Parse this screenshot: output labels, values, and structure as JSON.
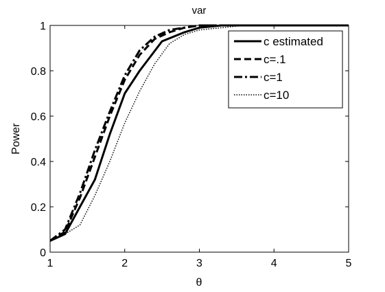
{
  "chart_data": {
    "type": "line",
    "title": "var",
    "xlabel": "θ",
    "ylabel": "Power",
    "xlim": [
      1,
      5
    ],
    "ylim": [
      0,
      1
    ],
    "xticks": [
      1,
      2,
      3,
      4,
      5
    ],
    "yticks": [
      0,
      0.2,
      0.4,
      0.6,
      0.8,
      1
    ],
    "xtick_labels": [
      "1",
      "2",
      "3",
      "4",
      "5"
    ],
    "ytick_labels": [
      "0",
      "0.2",
      "0.4",
      "0.6",
      "0.8",
      "1"
    ],
    "grid": false,
    "legend_position": "top-right",
    "series": [
      {
        "name": "c estimated",
        "style": "solid-thick",
        "color": "#000000",
        "x": [
          1.0,
          1.2,
          1.4,
          1.6,
          1.8,
          2.0,
          2.2,
          2.5,
          2.8,
          3.0,
          3.3,
          3.6,
          4.0,
          4.5,
          5.0
        ],
        "y": [
          0.05,
          0.08,
          0.2,
          0.32,
          0.52,
          0.7,
          0.8,
          0.93,
          0.97,
          0.99,
          1.0,
          1.0,
          1.0,
          1.0,
          1.0
        ]
      },
      {
        "name": "c=.1",
        "style": "dashed",
        "color": "#000000",
        "x": [
          1.0,
          1.2,
          1.4,
          1.6,
          1.8,
          2.0,
          2.2,
          2.4,
          2.6,
          2.8,
          3.0,
          3.3,
          4.0,
          5.0
        ],
        "y": [
          0.05,
          0.09,
          0.24,
          0.42,
          0.6,
          0.76,
          0.87,
          0.94,
          0.97,
          0.99,
          1.0,
          1.0,
          1.0,
          1.0
        ]
      },
      {
        "name": "c=1",
        "style": "dash-dot",
        "color": "#000000",
        "x": [
          1.0,
          1.2,
          1.4,
          1.6,
          1.8,
          2.0,
          2.2,
          2.4,
          2.6,
          2.8,
          3.0,
          3.3,
          4.0,
          5.0
        ],
        "y": [
          0.05,
          0.1,
          0.26,
          0.45,
          0.62,
          0.78,
          0.89,
          0.95,
          0.98,
          0.99,
          1.0,
          1.0,
          1.0,
          1.0
        ]
      },
      {
        "name": "c=10",
        "style": "dotted",
        "color": "#000000",
        "x": [
          1.0,
          1.2,
          1.4,
          1.6,
          1.8,
          2.0,
          2.2,
          2.4,
          2.6,
          2.8,
          3.0,
          3.3,
          3.6,
          4.0,
          5.0
        ],
        "y": [
          0.05,
          0.08,
          0.12,
          0.25,
          0.4,
          0.57,
          0.71,
          0.83,
          0.92,
          0.96,
          0.98,
          0.99,
          1.0,
          1.0,
          1.0
        ]
      }
    ]
  }
}
